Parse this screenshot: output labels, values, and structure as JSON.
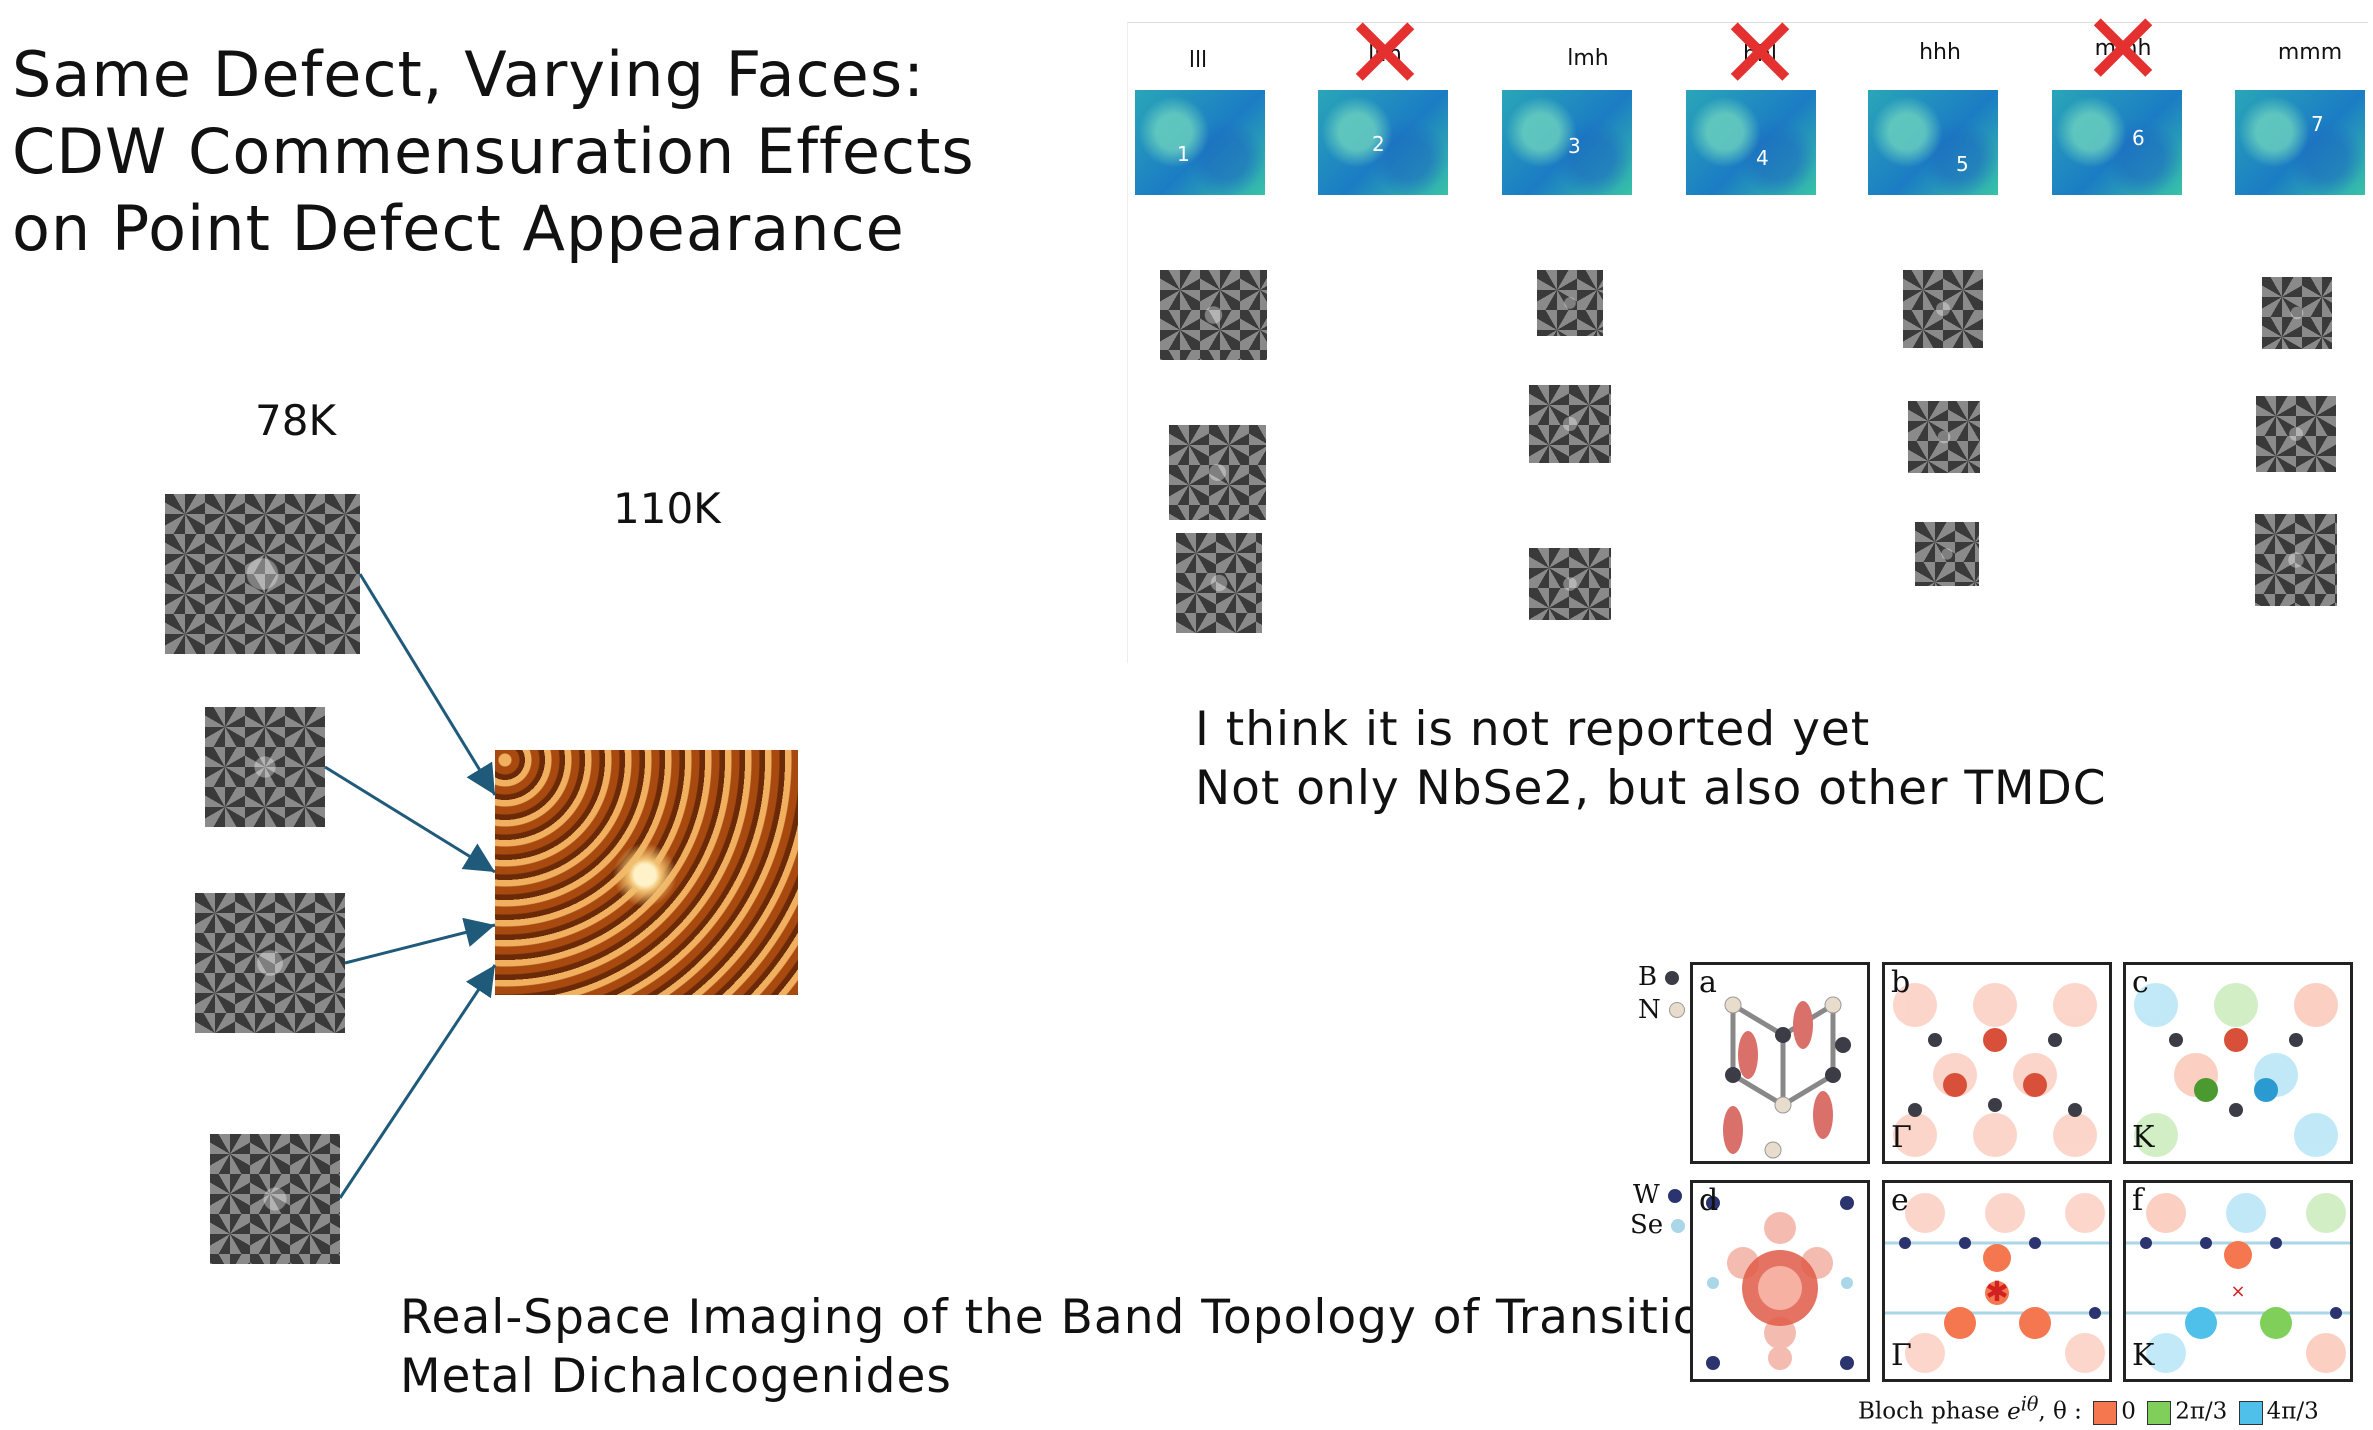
{
  "title": {
    "line1": "Same Defect, Varying Faces:",
    "line2": "CDW Commensuration Effects",
    "line3": "on Point Defect Appearance"
  },
  "left": {
    "temp_low": "78K",
    "temp_high": "110K"
  },
  "faces": {
    "labels": [
      "lll",
      "llm",
      "lmh",
      "hhl",
      "hhh",
      "mmh",
      "mmm"
    ],
    "numbers": [
      "1",
      "2",
      "3",
      "4",
      "5",
      "6",
      "7"
    ],
    "excluded": [
      "llm",
      "hhl",
      "mmh"
    ]
  },
  "note": {
    "line1": "I think it is not reported yet",
    "line2": "Not only NbSe2, but also other TMDC"
  },
  "reference": {
    "line1": "Real-Space Imaging of the Band Topology of Transition",
    "line2": "Metal Dichalcogenides"
  },
  "figure": {
    "top_labels": {
      "b": "B",
      "n": "N"
    },
    "bottom_labels": {
      "w": "W",
      "se": "Se"
    },
    "panels": [
      "a",
      "b",
      "c",
      "d",
      "e",
      "f"
    ],
    "sub_b": "Γ",
    "sub_c": "K",
    "sub_e": "Γ",
    "sub_f": "K",
    "legend_prefix": "Bloch phase",
    "legend_formula": "e",
    "legend_exp": "iθ",
    "legend_theta": ", θ :",
    "phase_values": [
      "0",
      "2π/3",
      "4π/3"
    ],
    "colors": {
      "phase0": "#f4774f",
      "phase1": "#7fcf5a",
      "phase2": "#4fc0ea",
      "boron": "#3c3c46",
      "nitrogen": "#e8dccc",
      "tungsten": "#2c3470",
      "selenium": "#a9d7e8"
    }
  }
}
